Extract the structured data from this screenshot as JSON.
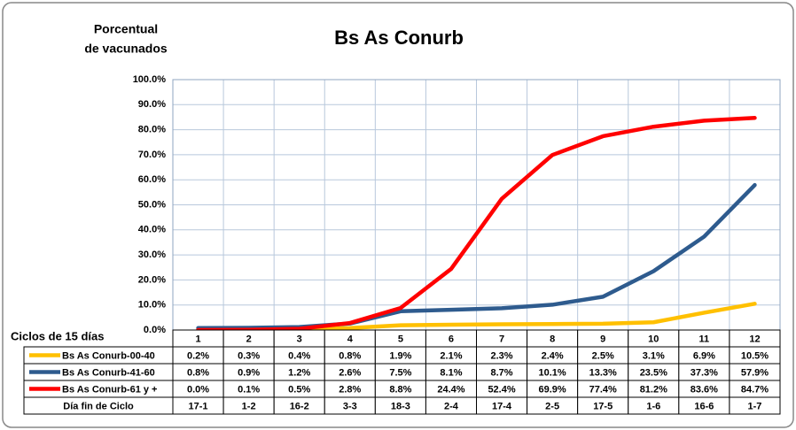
{
  "chart_data": {
    "type": "line",
    "title": "Bs As Conurb",
    "y_label_lines": [
      "Porcentual",
      "de vacunados"
    ],
    "x_label": "Ciclos de 15 días",
    "categories": [
      "1",
      "2",
      "3",
      "4",
      "5",
      "6",
      "7",
      "8",
      "9",
      "10",
      "11",
      "12"
    ],
    "series": [
      {
        "name": "Bs As Conurb-00-40",
        "color": "#ffc000",
        "values": [
          0.2,
          0.3,
          0.4,
          0.8,
          1.9,
          2.1,
          2.3,
          2.4,
          2.5,
          3.1,
          6.9,
          10.5
        ],
        "value_labels": [
          "0.2%",
          "0.3%",
          "0.4%",
          "0.8%",
          "1.9%",
          "2.1%",
          "2.3%",
          "2.4%",
          "2.5%",
          "3.1%",
          "6.9%",
          "10.5%"
        ]
      },
      {
        "name": "Bs As Conurb-41-60",
        "color": "#2e5b8e",
        "values": [
          0.8,
          0.9,
          1.2,
          2.6,
          7.5,
          8.1,
          8.7,
          10.1,
          13.3,
          23.5,
          37.3,
          57.9
        ],
        "value_labels": [
          "0.8%",
          "0.9%",
          "1.2%",
          "2.6%",
          "7.5%",
          "8.1%",
          "8.7%",
          "10.1%",
          "13.3%",
          "23.5%",
          "37.3%",
          "57.9%"
        ]
      },
      {
        "name": "Bs As Conurb-61 y +",
        "color": "#ff0000",
        "values": [
          0.0,
          0.1,
          0.5,
          2.8,
          8.8,
          24.4,
          52.4,
          69.9,
          77.4,
          81.2,
          83.6,
          84.7
        ],
        "value_labels": [
          "0.0%",
          "0.1%",
          "0.5%",
          "2.8%",
          "8.8%",
          "24.4%",
          "52.4%",
          "69.9%",
          "77.4%",
          "81.2%",
          "83.6%",
          "84.7%"
        ]
      }
    ],
    "end_dates": {
      "name": "Día fin de Ciclo",
      "values": [
        "17-1",
        "1-2",
        "16-2",
        "3-3",
        "18-3",
        "2-4",
        "17-4",
        "2-5",
        "17-5",
        "1-6",
        "16-6",
        "1-7"
      ]
    },
    "ylim": [
      0,
      100
    ],
    "yticks": [
      {
        "value": 0,
        "label": "0.0%"
      },
      {
        "value": 10,
        "label": "10.0%"
      },
      {
        "value": 20,
        "label": "20.0%"
      },
      {
        "value": 30,
        "label": "30.0%"
      },
      {
        "value": 40,
        "label": "40.0%"
      },
      {
        "value": 50,
        "label": "50.0%"
      },
      {
        "value": 60,
        "label": "60.0%"
      },
      {
        "value": 70,
        "label": "70.0%"
      },
      {
        "value": 80,
        "label": "80.0%"
      },
      {
        "value": 90,
        "label": "90.0%"
      },
      {
        "value": 100,
        "label": "100.0%"
      }
    ],
    "grid": true
  }
}
